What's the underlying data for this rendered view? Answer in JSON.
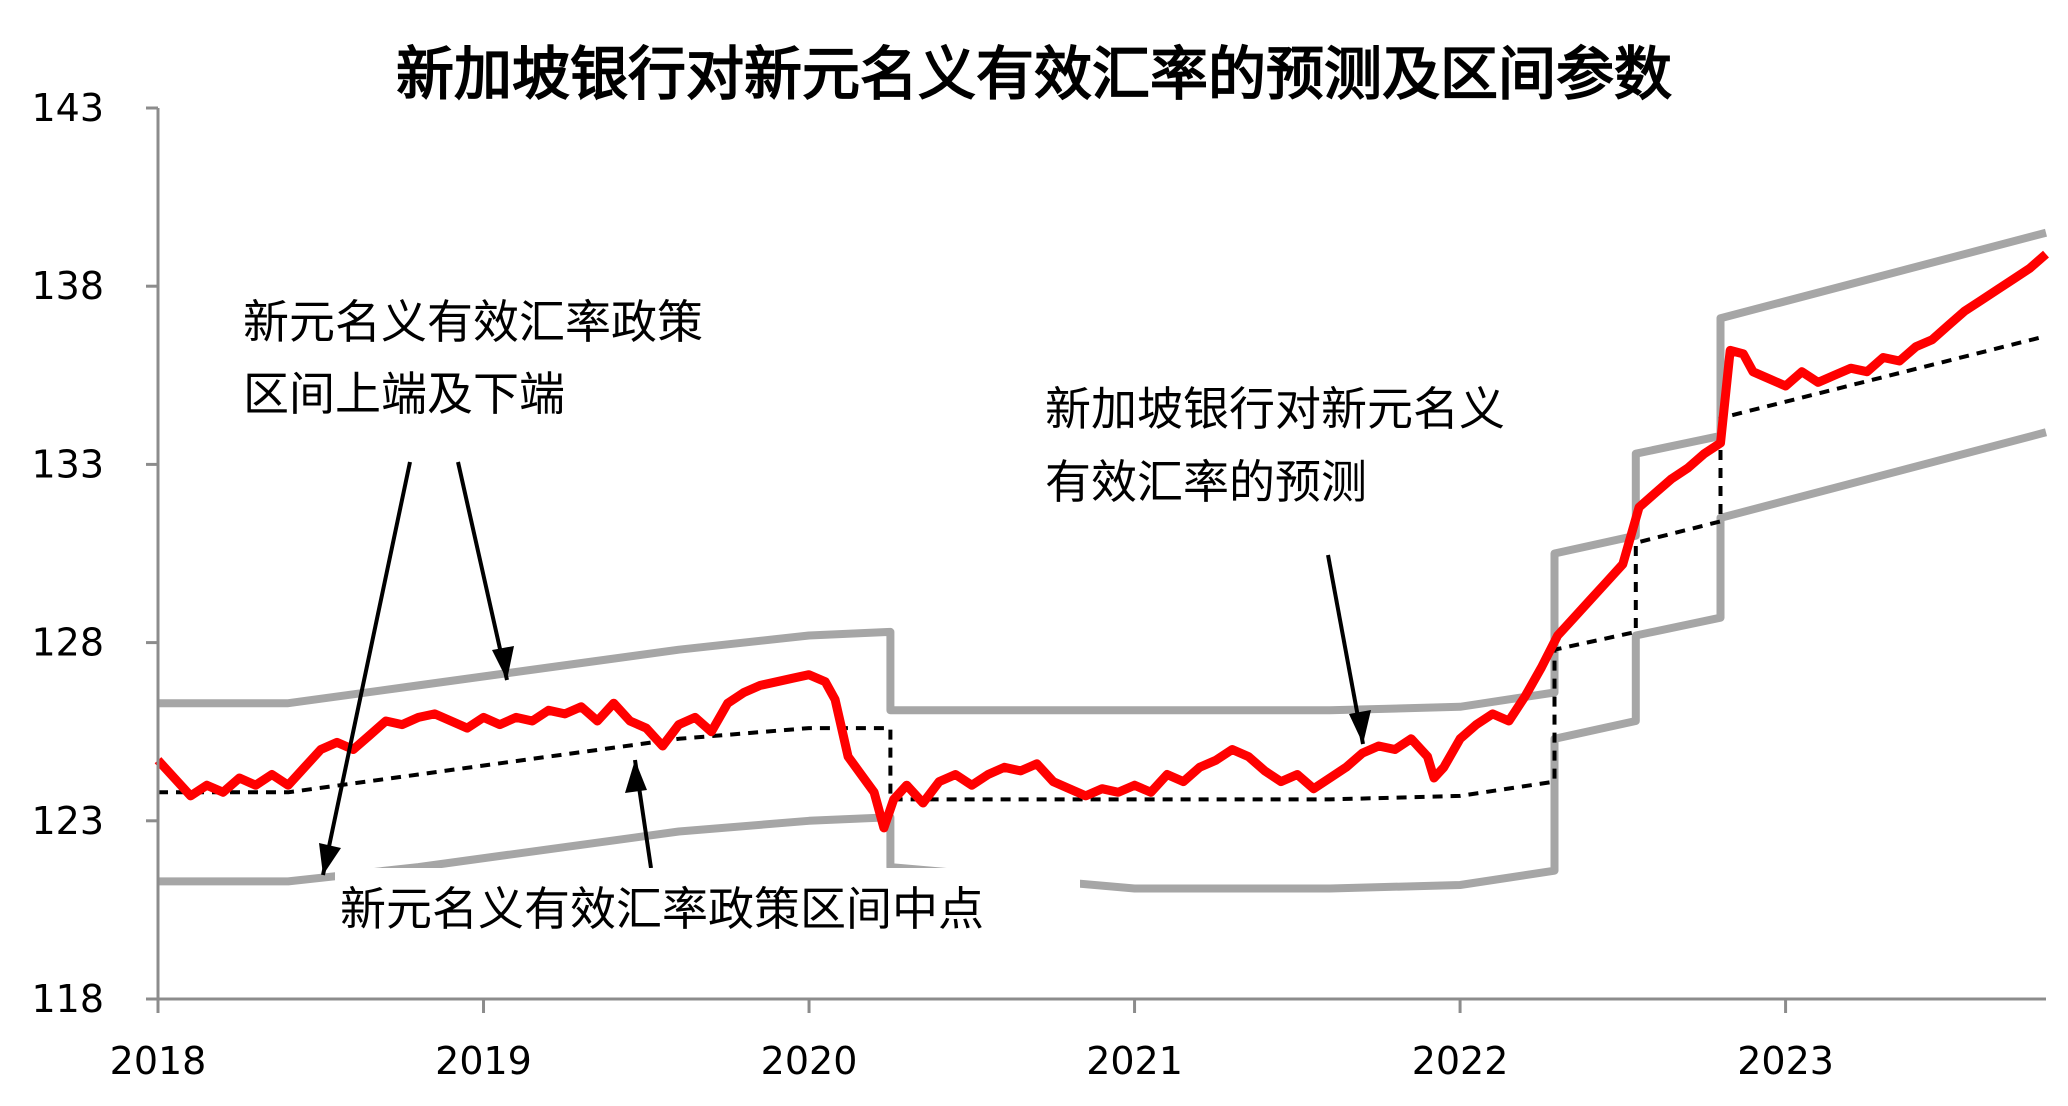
{
  "chart_data": {
    "type": "line",
    "title": "新加坡银行对新元名义有效汇率的预测及区间参数",
    "xlabel": "",
    "ylabel": "",
    "xlim": [
      2018.0,
      2023.8
    ],
    "ylim": [
      118,
      143
    ],
    "x_ticks": [
      "2018",
      "2019",
      "2020",
      "2021",
      "2022",
      "2023"
    ],
    "y_ticks": [
      "143",
      "138",
      "133",
      "128",
      "123",
      "118"
    ],
    "grid": false,
    "colors": {
      "band": "#a6a6a6",
      "forecast": "#ff0000",
      "midpoint": "#000000"
    },
    "annotations": [
      {
        "id": "band",
        "lines": [
          "新元名义有效汇率政策",
          "区间上端及下端"
        ]
      },
      {
        "id": "forecast",
        "lines": [
          "新加坡银行对新元名义",
          "有效汇率的预测"
        ]
      },
      {
        "id": "midpoint",
        "lines": [
          "新元名义有效汇率政策区间中点"
        ]
      }
    ],
    "series": [
      {
        "role": "band-upper",
        "points": [
          [
            2018.0,
            126.3
          ],
          [
            2018.4,
            126.3
          ],
          [
            2018.8,
            126.8
          ],
          [
            2019.2,
            127.3
          ],
          [
            2019.6,
            127.8
          ],
          [
            2020.0,
            128.2
          ],
          [
            2020.25,
            128.3
          ],
          [
            2020.25,
            126.1
          ],
          [
            2021.0,
            126.1
          ],
          [
            2021.6,
            126.1
          ],
          [
            2022.0,
            126.2
          ],
          [
            2022.29,
            126.6
          ],
          [
            2022.29,
            130.5
          ],
          [
            2022.54,
            131.0
          ],
          [
            2022.54,
            133.3
          ],
          [
            2022.8,
            133.8
          ],
          [
            2022.8,
            137.1
          ],
          [
            2023.8,
            139.5
          ]
        ]
      },
      {
        "role": "band-lower",
        "points": [
          [
            2018.0,
            121.3
          ],
          [
            2018.4,
            121.3
          ],
          [
            2018.8,
            121.7
          ],
          [
            2019.2,
            122.2
          ],
          [
            2019.6,
            122.7
          ],
          [
            2020.0,
            123.0
          ],
          [
            2020.25,
            123.1
          ],
          [
            2020.25,
            121.7
          ],
          [
            2021.0,
            121.1
          ],
          [
            2021.6,
            121.1
          ],
          [
            2022.0,
            121.2
          ],
          [
            2022.29,
            121.6
          ],
          [
            2022.29,
            125.3
          ],
          [
            2022.54,
            125.8
          ],
          [
            2022.54,
            128.2
          ],
          [
            2022.8,
            128.7
          ],
          [
            2022.8,
            131.5
          ],
          [
            2023.8,
            133.9
          ]
        ]
      },
      {
        "role": "midpoint",
        "points": [
          [
            2018.0,
            123.8
          ],
          [
            2018.4,
            123.8
          ],
          [
            2018.8,
            124.3
          ],
          [
            2019.2,
            124.8
          ],
          [
            2019.6,
            125.3
          ],
          [
            2020.0,
            125.6
          ],
          [
            2020.25,
            125.6
          ],
          [
            2020.25,
            123.6
          ],
          [
            2021.0,
            123.6
          ],
          [
            2021.6,
            123.6
          ],
          [
            2022.0,
            123.7
          ],
          [
            2022.29,
            124.1
          ],
          [
            2022.29,
            127.8
          ],
          [
            2022.54,
            128.3
          ],
          [
            2022.54,
            130.8
          ],
          [
            2022.8,
            131.4
          ],
          [
            2022.8,
            134.3
          ],
          [
            2023.8,
            136.6
          ]
        ]
      },
      {
        "role": "forecast",
        "points": [
          [
            2018.0,
            124.7
          ],
          [
            2018.05,
            124.2
          ],
          [
            2018.1,
            123.7
          ],
          [
            2018.15,
            124.0
          ],
          [
            2018.2,
            123.8
          ],
          [
            2018.25,
            124.2
          ],
          [
            2018.3,
            124.0
          ],
          [
            2018.35,
            124.3
          ],
          [
            2018.4,
            124.0
          ],
          [
            2018.45,
            124.5
          ],
          [
            2018.5,
            125.0
          ],
          [
            2018.55,
            125.2
          ],
          [
            2018.6,
            125.0
          ],
          [
            2018.65,
            125.4
          ],
          [
            2018.7,
            125.8
          ],
          [
            2018.75,
            125.7
          ],
          [
            2018.8,
            125.9
          ],
          [
            2018.85,
            126.0
          ],
          [
            2018.9,
            125.8
          ],
          [
            2018.95,
            125.6
          ],
          [
            2019.0,
            125.9
          ],
          [
            2019.05,
            125.7
          ],
          [
            2019.1,
            125.9
          ],
          [
            2019.15,
            125.8
          ],
          [
            2019.2,
            126.1
          ],
          [
            2019.25,
            126.0
          ],
          [
            2019.3,
            126.2
          ],
          [
            2019.35,
            125.8
          ],
          [
            2019.4,
            126.3
          ],
          [
            2019.45,
            125.8
          ],
          [
            2019.5,
            125.6
          ],
          [
            2019.55,
            125.1
          ],
          [
            2019.6,
            125.7
          ],
          [
            2019.65,
            125.9
          ],
          [
            2019.7,
            125.5
          ],
          [
            2019.75,
            126.3
          ],
          [
            2019.8,
            126.6
          ],
          [
            2019.85,
            126.8
          ],
          [
            2019.9,
            126.9
          ],
          [
            2019.95,
            127.0
          ],
          [
            2020.0,
            127.1
          ],
          [
            2020.05,
            126.9
          ],
          [
            2020.08,
            126.4
          ],
          [
            2020.12,
            124.8
          ],
          [
            2020.16,
            124.3
          ],
          [
            2020.2,
            123.8
          ],
          [
            2020.23,
            122.8
          ],
          [
            2020.26,
            123.6
          ],
          [
            2020.3,
            124.0
          ],
          [
            2020.35,
            123.5
          ],
          [
            2020.4,
            124.1
          ],
          [
            2020.45,
            124.3
          ],
          [
            2020.5,
            124.0
          ],
          [
            2020.55,
            124.3
          ],
          [
            2020.6,
            124.5
          ],
          [
            2020.65,
            124.4
          ],
          [
            2020.7,
            124.6
          ],
          [
            2020.75,
            124.1
          ],
          [
            2020.8,
            123.9
          ],
          [
            2020.85,
            123.7
          ],
          [
            2020.9,
            123.9
          ],
          [
            2020.95,
            123.8
          ],
          [
            2021.0,
            124.0
          ],
          [
            2021.05,
            123.8
          ],
          [
            2021.1,
            124.3
          ],
          [
            2021.15,
            124.1
          ],
          [
            2021.2,
            124.5
          ],
          [
            2021.25,
            124.7
          ],
          [
            2021.3,
            125.0
          ],
          [
            2021.35,
            124.8
          ],
          [
            2021.4,
            124.4
          ],
          [
            2021.45,
            124.1
          ],
          [
            2021.5,
            124.3
          ],
          [
            2021.55,
            123.9
          ],
          [
            2021.6,
            124.2
          ],
          [
            2021.65,
            124.5
          ],
          [
            2021.7,
            124.9
          ],
          [
            2021.75,
            125.1
          ],
          [
            2021.8,
            125.0
          ],
          [
            2021.85,
            125.3
          ],
          [
            2021.9,
            124.8
          ],
          [
            2021.92,
            124.2
          ],
          [
            2021.95,
            124.5
          ],
          [
            2022.0,
            125.3
          ],
          [
            2022.05,
            125.7
          ],
          [
            2022.1,
            126.0
          ],
          [
            2022.15,
            125.8
          ],
          [
            2022.2,
            126.5
          ],
          [
            2022.25,
            127.3
          ],
          [
            2022.3,
            128.2
          ],
          [
            2022.35,
            128.7
          ],
          [
            2022.4,
            129.2
          ],
          [
            2022.45,
            129.7
          ],
          [
            2022.5,
            130.2
          ],
          [
            2022.55,
            131.8
          ],
          [
            2022.6,
            132.2
          ],
          [
            2022.65,
            132.6
          ],
          [
            2022.7,
            132.9
          ],
          [
            2022.75,
            133.3
          ],
          [
            2022.8,
            133.6
          ],
          [
            2022.83,
            136.2
          ],
          [
            2022.87,
            136.1
          ],
          [
            2022.9,
            135.6
          ],
          [
            2022.95,
            135.4
          ],
          [
            2023.0,
            135.2
          ],
          [
            2023.05,
            135.6
          ],
          [
            2023.1,
            135.3
          ],
          [
            2023.15,
            135.5
          ],
          [
            2023.2,
            135.7
          ],
          [
            2023.25,
            135.6
          ],
          [
            2023.3,
            136.0
          ],
          [
            2023.35,
            135.9
          ],
          [
            2023.4,
            136.3
          ],
          [
            2023.45,
            136.5
          ],
          [
            2023.5,
            136.9
          ],
          [
            2023.55,
            137.3
          ],
          [
            2023.6,
            137.6
          ],
          [
            2023.65,
            137.9
          ],
          [
            2023.7,
            138.2
          ],
          [
            2023.75,
            138.5
          ],
          [
            2023.8,
            138.9
          ]
        ]
      }
    ]
  }
}
